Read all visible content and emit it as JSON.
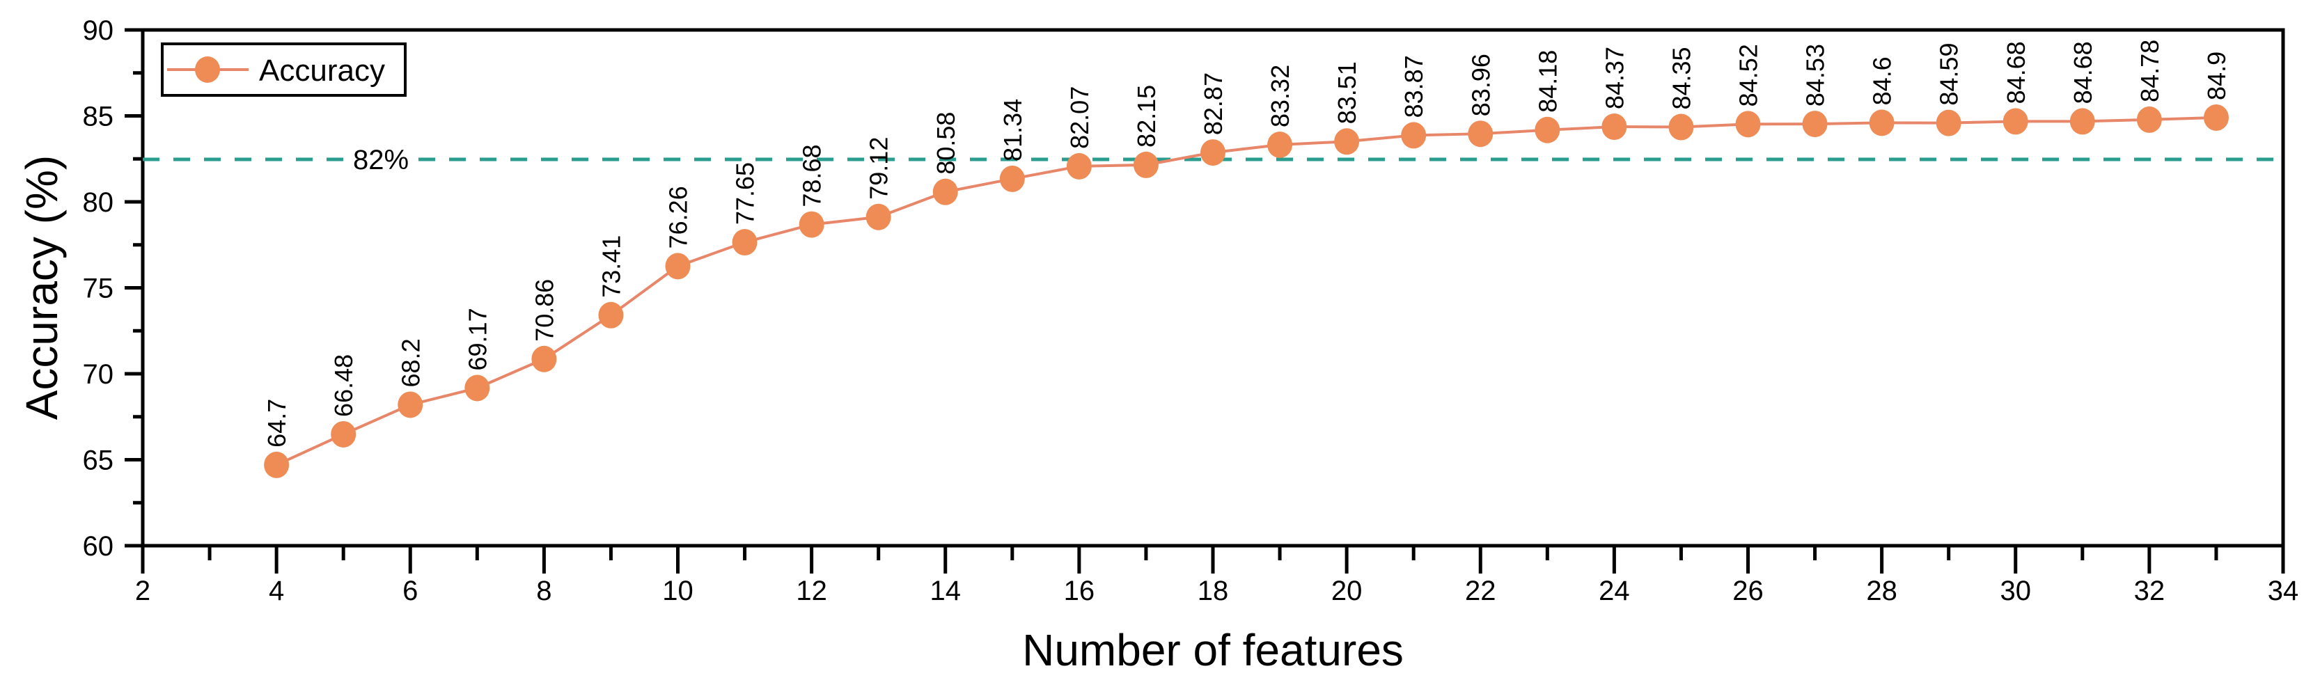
{
  "chart_data": {
    "type": "line",
    "title": "",
    "xlabel": "Number of features",
    "ylabel": "Accuracy (%)",
    "xlim": [
      2,
      34
    ],
    "ylim": [
      60,
      90
    ],
    "x_major_tick_step": 2,
    "x_minor_tick_step": 1,
    "y_major_tick_step": 5,
    "y_minor_tick_step": 2.5,
    "grid": false,
    "legend": {
      "label": "Accuracy",
      "position": "top-left"
    },
    "reference_line": {
      "label": "82%",
      "value": 82,
      "plotted_at": 82.47,
      "color": "#2A9D8F",
      "style": "dashed"
    },
    "series": [
      {
        "name": "Accuracy",
        "line_color": "#E8866A",
        "marker_color": "#EF8C55",
        "x": [
          4,
          5,
          6,
          7,
          8,
          9,
          10,
          11,
          12,
          13,
          14,
          15,
          16,
          17,
          18,
          19,
          20,
          21,
          22,
          23,
          24,
          25,
          26,
          27,
          28,
          29,
          30,
          31,
          32,
          33
        ],
        "values": [
          64.7,
          66.48,
          68.2,
          69.17,
          70.86,
          73.41,
          76.26,
          77.65,
          78.68,
          79.12,
          80.58,
          81.34,
          82.07,
          82.15,
          82.87,
          83.32,
          83.51,
          83.87,
          83.96,
          84.18,
          84.37,
          84.35,
          84.52,
          84.53,
          84.6,
          84.59,
          84.68,
          84.68,
          84.78,
          84.9
        ]
      }
    ]
  }
}
